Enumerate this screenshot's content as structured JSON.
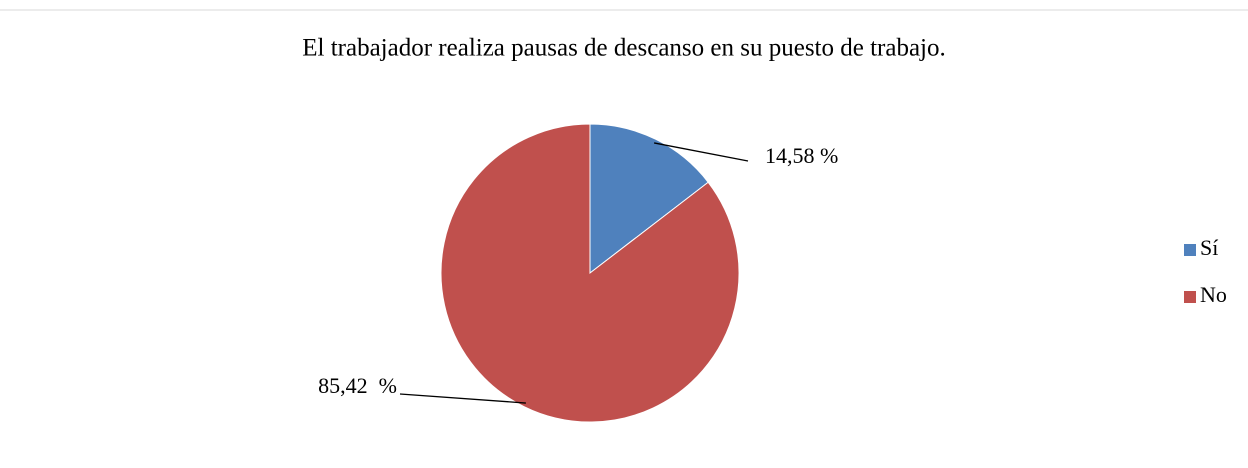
{
  "chart_data": {
    "type": "pie",
    "title": "El trabajador realiza pausas de descanso en su puesto de trabajo.",
    "categories": [
      "Sí",
      "No"
    ],
    "values": [
      14.58,
      85.42
    ],
    "value_labels": [
      "14,58 %",
      "85,42  %"
    ],
    "colors": [
      "#4f81bd",
      "#c0504d"
    ],
    "legend": "right"
  }
}
